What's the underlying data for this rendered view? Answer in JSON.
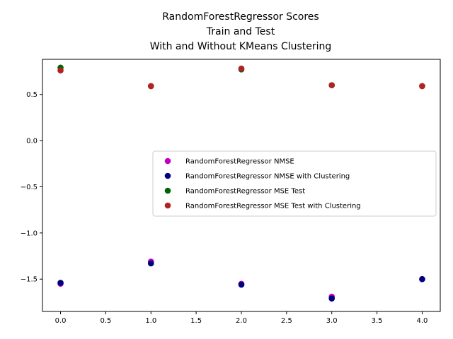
{
  "chart_data": {
    "type": "scatter",
    "title_lines": [
      "RandomForestRegressor Scores",
      "Train and Test",
      "With and Without KMeans Clustering"
    ],
    "xlabel": "",
    "ylabel": "",
    "xlim": [
      -0.2,
      4.2
    ],
    "ylim": [
      -1.85,
      0.88
    ],
    "x_ticks": [
      "0.0",
      "0.5",
      "1.0",
      "1.5",
      "2.0",
      "2.5",
      "3.0",
      "3.5",
      "4.0"
    ],
    "x_tick_values": [
      0.0,
      0.5,
      1.0,
      1.5,
      2.0,
      2.5,
      3.0,
      3.5,
      4.0
    ],
    "y_ticks": [
      "0.5",
      "0.0",
      "−0.5",
      "−1.0",
      "−1.5"
    ],
    "y_tick_values": [
      0.5,
      0.0,
      -0.5,
      -1.0,
      -1.5
    ],
    "grid": false,
    "legend_position": "center-right",
    "series": [
      {
        "name": "RandomForestRegressor NMSE",
        "color": "#bf00bf",
        "x": [
          0,
          1,
          2,
          3,
          4
        ],
        "y": [
          -1.55,
          -1.31,
          -1.55,
          -1.69,
          -1.5
        ]
      },
      {
        "name": "RandomForestRegressor NMSE with Clustering",
        "color": "#00007f",
        "x": [
          0,
          1,
          2,
          3,
          4
        ],
        "y": [
          -1.54,
          -1.33,
          -1.56,
          -1.71,
          -1.5
        ]
      },
      {
        "name": "RandomForestRegressor MSE Test",
        "color": "#006400",
        "x": [
          0,
          1,
          2,
          3,
          4
        ],
        "y": [
          0.79,
          0.59,
          0.77,
          0.6,
          0.59
        ]
      },
      {
        "name": "RandomForestRegressor MSE Test with Clustering",
        "color": "#b22222",
        "x": [
          0,
          1,
          2,
          3,
          4
        ],
        "y": [
          0.76,
          0.59,
          0.78,
          0.6,
          0.59
        ]
      }
    ]
  }
}
